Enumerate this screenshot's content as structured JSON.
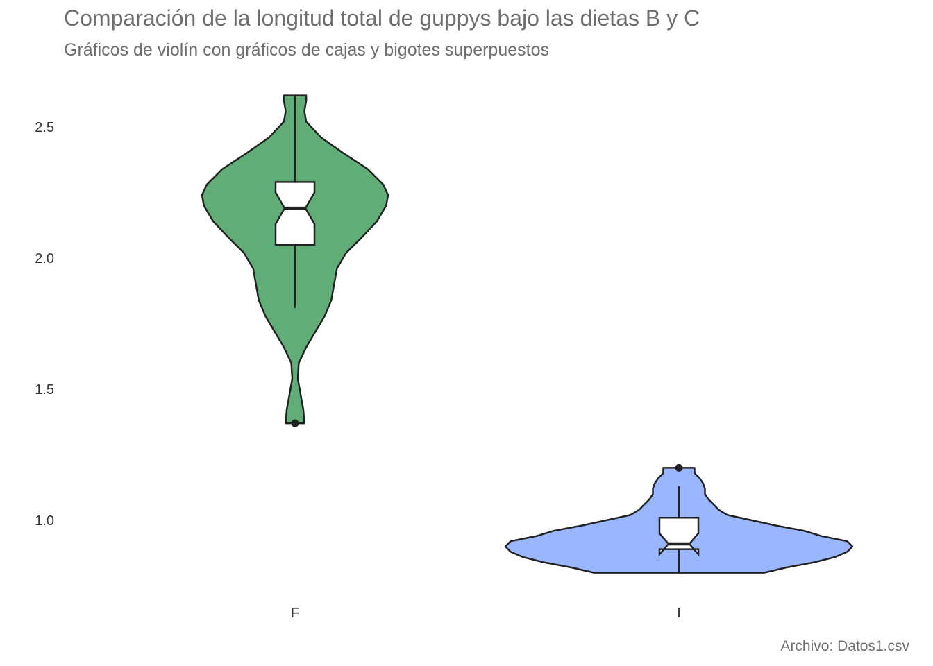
{
  "chart_data": {
    "type": "violin",
    "title": "Comparación de la longitud total de guppys bajo las dietas B y C",
    "subtitle": "Gráficos de violín con gráficos de cajas y bigotes superpuestos",
    "caption": "Archivo: Datos1.csv",
    "xlabel": "",
    "ylabel": "",
    "categories": [
      "F",
      "I"
    ],
    "ylim": [
      0.7,
      2.64
    ],
    "yticks": [
      1.0,
      1.5,
      2.0,
      2.5
    ],
    "ytick_labels": [
      "1.0",
      "1.5",
      "2.0",
      "2.5"
    ],
    "grid": false,
    "legend": "none",
    "series": [
      {
        "category": "F",
        "color": "#61AD77",
        "violin_range": [
          1.37,
          2.62
        ],
        "density_profile": [
          [
            1.37,
            0.1
          ],
          [
            1.42,
            0.09
          ],
          [
            1.48,
            0.06
          ],
          [
            1.54,
            0.03
          ],
          [
            1.6,
            0.04
          ],
          [
            1.66,
            0.12
          ],
          [
            1.72,
            0.22
          ],
          [
            1.78,
            0.32
          ],
          [
            1.84,
            0.39
          ],
          [
            1.9,
            0.42
          ],
          [
            1.96,
            0.45
          ],
          [
            2.02,
            0.55
          ],
          [
            2.08,
            0.72
          ],
          [
            2.14,
            0.88
          ],
          [
            2.2,
            0.98
          ],
          [
            2.24,
            1.0
          ],
          [
            2.28,
            0.95
          ],
          [
            2.34,
            0.78
          ],
          [
            2.4,
            0.52
          ],
          [
            2.46,
            0.28
          ],
          [
            2.52,
            0.12
          ],
          [
            2.56,
            0.1
          ],
          [
            2.6,
            0.12
          ],
          [
            2.62,
            0.12
          ]
        ],
        "box": {
          "q1": 2.05,
          "median": 2.19,
          "q3": 2.29,
          "whisker_low": 1.81,
          "whisker_high": 2.62,
          "notch_low": 2.13,
          "notch_high": 2.25
        },
        "outliers": [
          1.37
        ]
      },
      {
        "category": "I",
        "color": "#9AB6FF",
        "violin_range": [
          0.8,
          1.2
        ],
        "density_profile": [
          [
            0.8,
            0.49
          ],
          [
            0.82,
            0.62
          ],
          [
            0.84,
            0.78
          ],
          [
            0.86,
            0.9
          ],
          [
            0.88,
            0.97
          ],
          [
            0.9,
            1.0
          ],
          [
            0.92,
            0.97
          ],
          [
            0.94,
            0.82
          ],
          [
            0.96,
            0.72
          ],
          [
            0.98,
            0.56
          ],
          [
            1.0,
            0.42
          ],
          [
            1.02,
            0.28
          ],
          [
            1.04,
            0.23
          ],
          [
            1.06,
            0.2
          ],
          [
            1.08,
            0.17
          ],
          [
            1.1,
            0.15
          ],
          [
            1.12,
            0.15
          ],
          [
            1.14,
            0.14
          ],
          [
            1.16,
            0.12
          ],
          [
            1.18,
            0.09
          ],
          [
            1.2,
            0.09
          ]
        ],
        "box": {
          "q1": 0.89,
          "median": 0.91,
          "q3": 1.01,
          "whisker_low": 0.8,
          "whisker_high": 1.13,
          "notch_low": 0.87,
          "notch_high": 0.95
        },
        "outliers": [
          1.2
        ]
      }
    ]
  }
}
